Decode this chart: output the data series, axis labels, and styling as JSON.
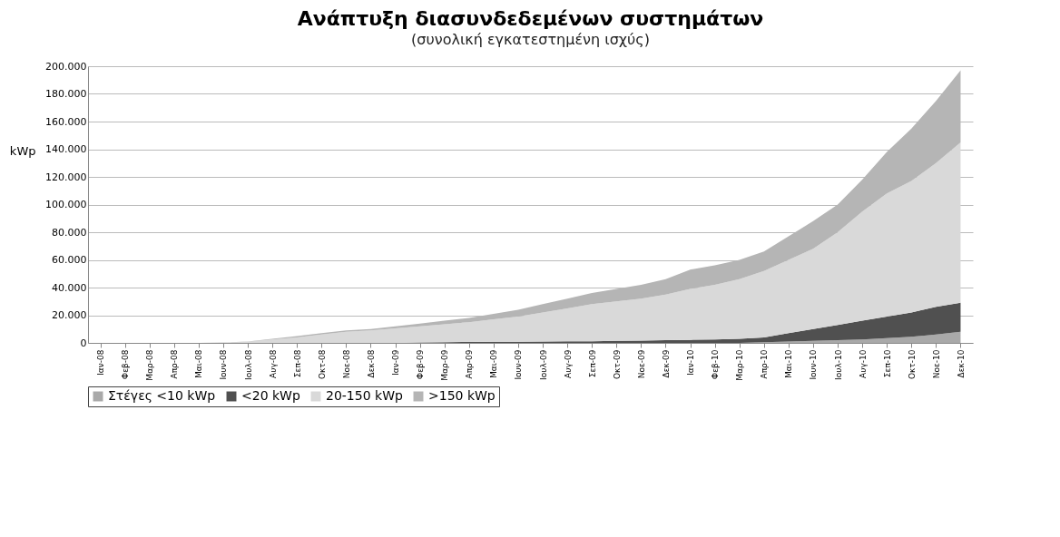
{
  "chart_data": {
    "type": "area",
    "title": "Ανάπτυξη διασυνδεδεμένων συστημάτων",
    "subtitle": "(συνολική εγκατεστημένη ισχύς)",
    "ylabel": "kWp",
    "stacked": true,
    "grid": "y",
    "legend": "bottom",
    "categories": [
      "Ιαν-08",
      "Φεβ-08",
      "Μαρ-08",
      "Απρ-08",
      "Μαι-08",
      "Ιουν-08",
      "Ιουλ-08",
      "Αυγ-08",
      "Σεπ-08",
      "Οκτ-08",
      "Νοε-08",
      "Δεκ-08",
      "Ιαν-09",
      "Φεβ-09",
      "Μαρ-09",
      "Απρ-09",
      "Μαι-09",
      "Ιουν-09",
      "Ιουλ-09",
      "Αυγ-09",
      "Σεπ-09",
      "Οκτ-09",
      "Νοε-09",
      "Δεκ-09",
      "Ιαν-10",
      "Φεβ-10",
      "Μαρ-10",
      "Απρ-10",
      "Μαι-10",
      "Ιουν-10",
      "Ιουλ-10",
      "Αυγ-10",
      "Σεπ-10",
      "Οκτ-10",
      "Νοε-10",
      "Δεκ-10"
    ],
    "ylim": [
      0,
      200000
    ],
    "yticks": [
      {
        "value": 0,
        "label": "0"
      },
      {
        "value": 20000,
        "label": "20.000"
      },
      {
        "value": 40000,
        "label": "40.000"
      },
      {
        "value": 60000,
        "label": "60.000"
      },
      {
        "value": 80000,
        "label": "80.000"
      },
      {
        "value": 100000,
        "label": "100.000"
      },
      {
        "value": 120000,
        "label": "120.000"
      },
      {
        "value": 140000,
        "label": "140.000"
      },
      {
        "value": 160000,
        "label": "160.000"
      },
      {
        "value": 180000,
        "label": "180.000"
      },
      {
        "value": 200000,
        "label": "200.000"
      }
    ],
    "series": [
      {
        "name": "Στέγες <10 kWp",
        "color": "#a9a9a9",
        "values": [
          0,
          0,
          0,
          0,
          0,
          0,
          0,
          0,
          0,
          0,
          0,
          0,
          0,
          0,
          0,
          0,
          0,
          0,
          0,
          0,
          0,
          0,
          0,
          0,
          0,
          0,
          0,
          500,
          1000,
          1500,
          2000,
          2500,
          3500,
          4500,
          6000,
          8000
        ]
      },
      {
        "name": "<20 kWp",
        "color": "#505050",
        "values": [
          0,
          0,
          0,
          0,
          0,
          0,
          0,
          0,
          0,
          0,
          0,
          0,
          0,
          300,
          500,
          700,
          800,
          900,
          1000,
          1100,
          1200,
          1500,
          1700,
          2000,
          2200,
          2500,
          3000,
          3500,
          6000,
          8500,
          11000,
          13500,
          15500,
          17500,
          20000,
          21000
        ]
      },
      {
        "name": "20-150 kWp",
        "color": "#d9d9d9",
        "values": [
          0,
          0,
          0,
          0,
          0,
          200,
          800,
          2500,
          4000,
          6000,
          8000,
          9000,
          10500,
          11700,
          13000,
          14300,
          16200,
          18100,
          21000,
          23900,
          26800,
          28500,
          30300,
          33000,
          36800,
          39500,
          43000,
          48000,
          53000,
          58000,
          67000,
          79000,
          89000,
          95000,
          104000,
          116000
        ]
      },
      {
        "name": ">150 kWp",
        "color": "#b5b5b5",
        "values": [
          0,
          0,
          0,
          0,
          0,
          100,
          200,
          500,
          1000,
          1000,
          1000,
          1000,
          1500,
          2000,
          2500,
          3000,
          4000,
          5000,
          6000,
          7000,
          8000,
          9000,
          10000,
          11000,
          14000,
          14000,
          14000,
          14000,
          17000,
          20000,
          20000,
          23000,
          30000,
          38000,
          45000,
          52000
        ]
      }
    ]
  }
}
